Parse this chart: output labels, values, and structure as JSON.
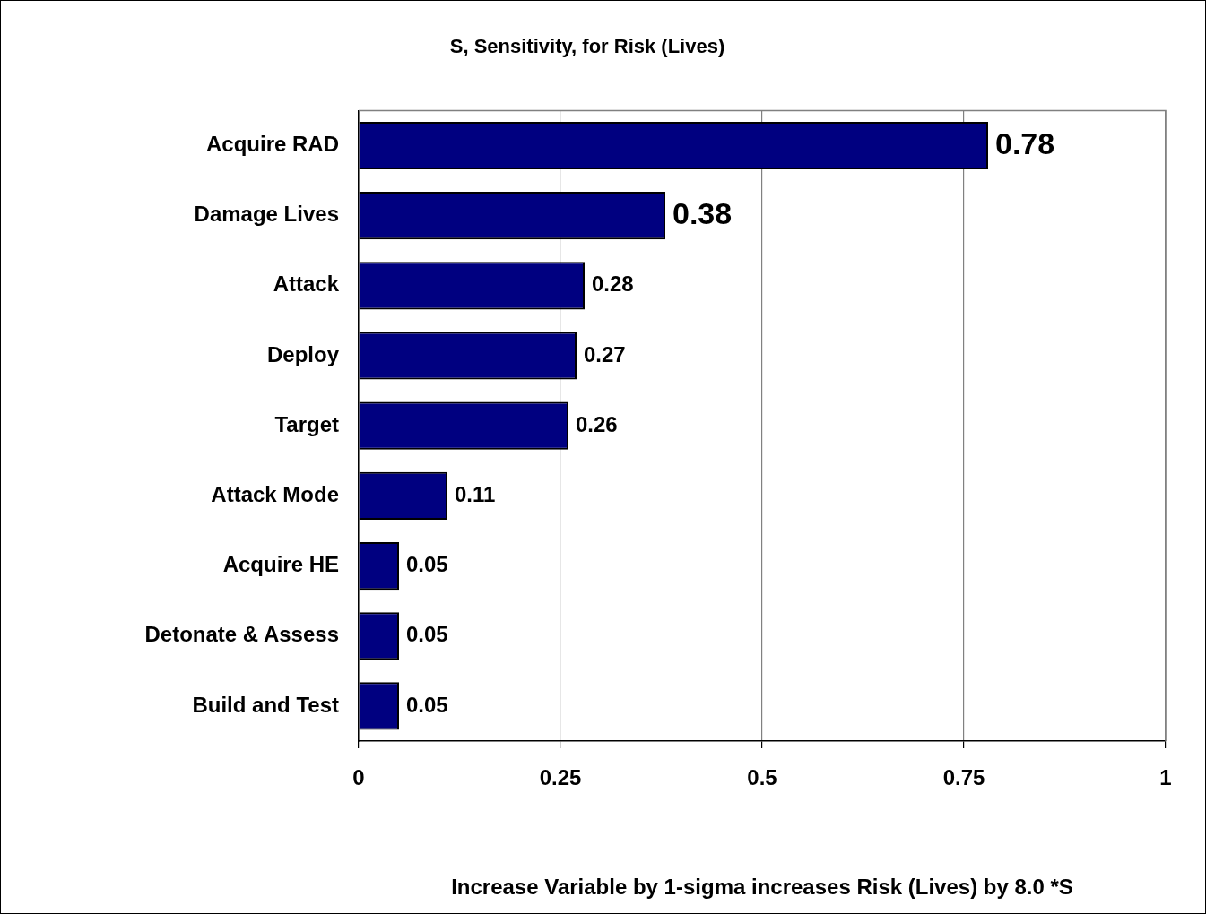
{
  "chart_data": {
    "type": "bar",
    "orientation": "horizontal",
    "title": "S, Sensitivity, for Risk (Lives)",
    "xlabel": "Increase Variable by 1-sigma increases Risk (Lives) by 8.0 *S",
    "categories": [
      "Acquire RAD",
      "Damage Lives",
      "Attack",
      "Deploy",
      "Target",
      "Attack Mode",
      "Acquire HE",
      "Detonate & Assess",
      "Build and Test"
    ],
    "values": [
      0.78,
      0.38,
      0.28,
      0.27,
      0.26,
      0.11,
      0.05,
      0.05,
      0.05
    ],
    "color": "#000080",
    "xlim": [
      0,
      1
    ],
    "xticks": [
      0,
      0.25,
      0.5,
      0.75,
      1
    ],
    "grid": "x",
    "data_labels": true,
    "legend": false
  }
}
